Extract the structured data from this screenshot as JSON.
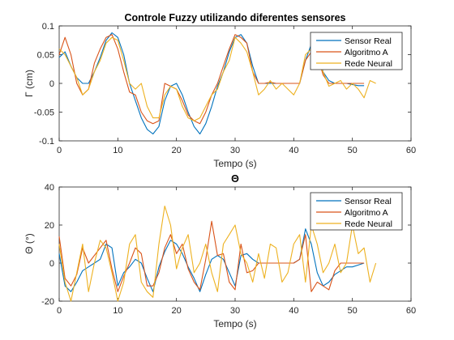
{
  "chart_data": [
    {
      "type": "line",
      "title": "Controle Fuzzy utilizando diferentes sensores",
      "xlabel": "Tempo (s)",
      "ylabel": "Γ (cm)",
      "xlim": [
        0,
        60
      ],
      "ylim": [
        -0.1,
        0.1
      ],
      "xticks": [
        0,
        10,
        20,
        30,
        40,
        50,
        60
      ],
      "yticks": [
        -0.1,
        -0.05,
        0,
        0.05,
        0.1
      ],
      "ytick_labels": [
        "-0.1",
        "-0.05",
        "0",
        "0.05",
        "0.1"
      ],
      "legend_position": "top-right",
      "series": [
        {
          "name": "Sensor Real",
          "color": "#0072BD",
          "x": [
            0,
            1,
            2,
            3,
            4,
            5,
            6,
            7,
            8,
            9,
            10,
            11,
            12,
            13,
            14,
            15,
            16,
            17,
            18,
            19,
            20,
            21,
            22,
            23,
            24,
            25,
            26,
            27,
            28,
            29,
            30,
            31,
            32,
            33,
            34,
            35,
            36,
            37,
            38,
            39,
            40,
            41,
            42,
            43,
            44,
            45,
            46,
            47,
            48,
            49,
            50,
            51,
            52
          ],
          "y": [
            0.045,
            0.055,
            0.03,
            0.01,
            0.0,
            0.0,
            0.02,
            0.045,
            0.075,
            0.088,
            0.08,
            0.05,
            0.0,
            -0.03,
            -0.06,
            -0.08,
            -0.088,
            -0.075,
            -0.03,
            -0.005,
            0.0,
            -0.02,
            -0.05,
            -0.075,
            -0.088,
            -0.07,
            -0.04,
            -0.005,
            0.02,
            0.055,
            0.08,
            0.085,
            0.07,
            0.03,
            0.0,
            0.0,
            0.0,
            0.0,
            0.0,
            0.0,
            0.0,
            0.0,
            0.04,
            0.068,
            0.055,
            0.02,
            0.005,
            0.0,
            0.0,
            0.0,
            -0.002,
            -0.004,
            -0.004
          ]
        },
        {
          "name": "Algoritmo A",
          "color": "#D95319",
          "x": [
            0,
            1,
            2,
            3,
            4,
            5,
            6,
            7,
            8,
            9,
            10,
            11,
            12,
            13,
            14,
            15,
            16,
            17,
            18,
            19,
            20,
            21,
            22,
            23,
            24,
            25,
            26,
            27,
            28,
            29,
            30,
            31,
            32,
            33,
            34,
            35,
            36,
            37,
            38,
            39,
            40,
            41,
            42,
            43,
            44,
            45,
            46,
            47,
            48,
            49,
            50,
            51,
            52
          ],
          "y": [
            0.05,
            0.08,
            0.05,
            0.0,
            -0.02,
            -0.01,
            0.035,
            0.06,
            0.08,
            0.085,
            0.06,
            0.02,
            -0.015,
            -0.02,
            -0.05,
            -0.065,
            -0.07,
            -0.065,
            0.0,
            -0.005,
            -0.01,
            -0.03,
            -0.055,
            -0.065,
            -0.07,
            -0.05,
            -0.02,
            0.0,
            0.03,
            0.06,
            0.085,
            0.08,
            0.07,
            0.02,
            0.0,
            0.0,
            0.002,
            0.0,
            0.0,
            0.0,
            0.0,
            0.0,
            0.04,
            0.055,
            0.05,
            0.015,
            0.0,
            0.0,
            0.0,
            0.0,
            0.0,
            0.0,
            0.0
          ]
        },
        {
          "name": "Rede Neural",
          "color": "#EDB120",
          "x": [
            0,
            1,
            2,
            3,
            4,
            5,
            6,
            7,
            8,
            9,
            10,
            11,
            12,
            13,
            14,
            15,
            16,
            17,
            18,
            19,
            20,
            21,
            22,
            23,
            24,
            25,
            26,
            27,
            28,
            29,
            30,
            31,
            32,
            33,
            34,
            35,
            36,
            37,
            38,
            39,
            40,
            41,
            42,
            43,
            44,
            45,
            46,
            47,
            48,
            49,
            50,
            51,
            52,
            53,
            54
          ],
          "y": [
            0.06,
            0.05,
            0.03,
            0.01,
            -0.02,
            -0.01,
            0.02,
            0.04,
            0.07,
            0.08,
            0.075,
            0.04,
            0.0,
            -0.01,
            0.0,
            -0.04,
            -0.06,
            -0.06,
            -0.02,
            -0.005,
            -0.01,
            -0.04,
            -0.06,
            -0.065,
            -0.06,
            -0.04,
            -0.02,
            -0.01,
            0.02,
            0.04,
            0.08,
            0.07,
            0.055,
            0.02,
            -0.02,
            -0.01,
            0.005,
            -0.01,
            0.0,
            -0.01,
            -0.02,
            0.0,
            0.05,
            0.06,
            0.04,
            0.02,
            -0.005,
            0.0,
            0.005,
            -0.01,
            0.0,
            -0.01,
            -0.025,
            0.005,
            0.0
          ]
        }
      ]
    },
    {
      "type": "line",
      "title": "Θ",
      "xlabel": "Tempo (s)",
      "ylabel": "Θ (°)",
      "xlim": [
        0,
        60
      ],
      "ylim": [
        -20,
        40
      ],
      "xticks": [
        0,
        10,
        20,
        30,
        40,
        50,
        60
      ],
      "yticks": [
        -20,
        0,
        20,
        40
      ],
      "ytick_labels": [
        "-20",
        "0",
        "20",
        "40"
      ],
      "legend_position": "top-right",
      "series": [
        {
          "name": "Sensor Real",
          "color": "#0072BD",
          "x": [
            0,
            1,
            2,
            3,
            4,
            5,
            6,
            7,
            8,
            9,
            10,
            11,
            12,
            13,
            14,
            15,
            16,
            17,
            18,
            19,
            20,
            21,
            22,
            23,
            24,
            25,
            26,
            27,
            28,
            29,
            30,
            31,
            32,
            33,
            34,
            35,
            36,
            37,
            38,
            39,
            40,
            41,
            42,
            43,
            44,
            45,
            46,
            47,
            48,
            49,
            50,
            51,
            52
          ],
          "y": [
            5,
            -12,
            -15,
            -10,
            -4,
            -2,
            0,
            2,
            10,
            8,
            -12,
            -5,
            -2,
            2,
            0,
            -8,
            -15,
            -2,
            6,
            12,
            10,
            5,
            -2,
            -8,
            -15,
            -6,
            2,
            4,
            2,
            -5,
            -12,
            4,
            5,
            2,
            0,
            0,
            0,
            0,
            0,
            0,
            0,
            2,
            18,
            10,
            -5,
            -12,
            -10,
            -6,
            -4,
            -2,
            -2,
            -1,
            0
          ]
        },
        {
          "name": "Algoritmo A",
          "color": "#D95319",
          "x": [
            0,
            1,
            2,
            3,
            4,
            5,
            6,
            7,
            8,
            9,
            10,
            11,
            12,
            13,
            14,
            15,
            16,
            17,
            18,
            19,
            20,
            21,
            22,
            23,
            24,
            25,
            26,
            27,
            28,
            29,
            30,
            31,
            32,
            33,
            34,
            35,
            36,
            37,
            38,
            39,
            40,
            41,
            42,
            43,
            44,
            45,
            46,
            47,
            48,
            49,
            50,
            51,
            52
          ],
          "y": [
            14,
            -8,
            -12,
            -6,
            8,
            0,
            4,
            8,
            12,
            -3,
            -15,
            -7,
            0,
            8,
            5,
            -12,
            -12,
            -5,
            8,
            15,
            5,
            10,
            -3,
            -10,
            -14,
            2,
            22,
            4,
            5,
            -10,
            -14,
            10,
            -5,
            -4,
            0,
            0,
            0,
            0,
            0,
            0,
            0,
            2,
            15,
            -15,
            -10,
            -12,
            -14,
            -4,
            0,
            0,
            0,
            0,
            0
          ]
        },
        {
          "name": "Rede Neural",
          "color": "#EDB120",
          "x": [
            0,
            1,
            2,
            3,
            4,
            5,
            6,
            7,
            8,
            9,
            10,
            11,
            12,
            13,
            14,
            15,
            16,
            17,
            18,
            19,
            20,
            21,
            22,
            23,
            24,
            25,
            26,
            27,
            28,
            29,
            30,
            31,
            32,
            33,
            34,
            35,
            36,
            37,
            38,
            39,
            40,
            41,
            42,
            43,
            44,
            45,
            46,
            47,
            48,
            49,
            50,
            51,
            52,
            53,
            54
          ],
          "y": [
            10,
            -10,
            -20,
            -5,
            10,
            -15,
            0,
            12,
            8,
            -5,
            -20,
            -10,
            10,
            15,
            -10,
            -15,
            -18,
            10,
            30,
            20,
            -3,
            8,
            15,
            -5,
            0,
            10,
            -5,
            -15,
            10,
            15,
            20,
            5,
            0,
            -10,
            5,
            -8,
            10,
            8,
            -10,
            -5,
            10,
            15,
            -10,
            20,
            10,
            -5,
            0,
            10,
            -5,
            0,
            20,
            5,
            8,
            -10,
            0
          ]
        }
      ]
    }
  ]
}
